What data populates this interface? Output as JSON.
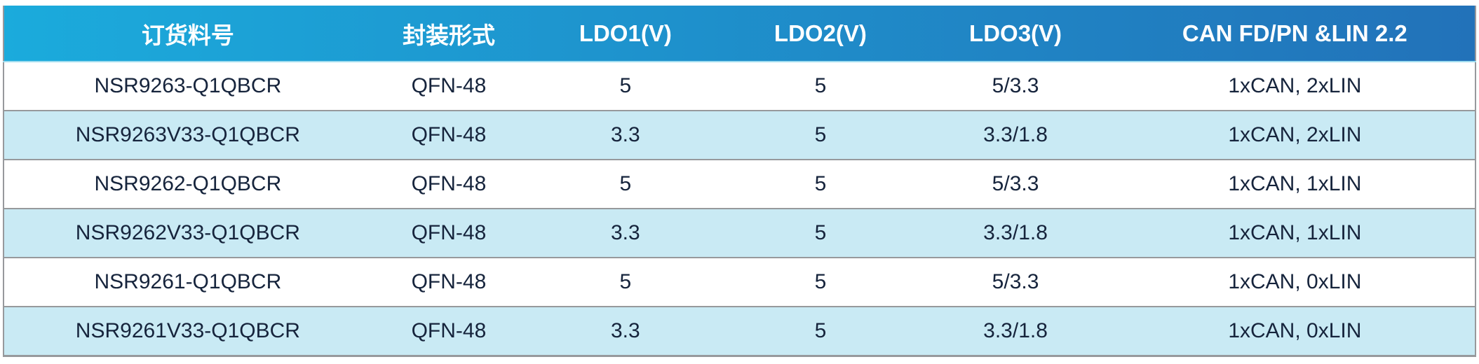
{
  "colors": {
    "header_gradient_start": "#1BABDC",
    "header_gradient_end": "#2272B9",
    "row_alt": "#C9EAF4",
    "row_default": "#FFFFFF",
    "text": "#16243C",
    "header_text": "#FFFFFF",
    "grid_line": "#97999C",
    "header_underline": "#9FDCEF"
  },
  "table": {
    "columns": [
      "订货料号",
      "封装形式",
      "LDO1(V)",
      "LDO2(V)",
      "LDO3(V)",
      "CAN FD/PN &LIN 2.2"
    ],
    "rows": [
      [
        "NSR9263-Q1QBCR",
        "QFN-48",
        "5",
        "5",
        "5/3.3",
        "1xCAN, 2xLIN"
      ],
      [
        "NSR9263V33-Q1QBCR",
        "QFN-48",
        "3.3",
        "5",
        "3.3/1.8",
        "1xCAN, 2xLIN"
      ],
      [
        "NSR9262-Q1QBCR",
        "QFN-48",
        "5",
        "5",
        "5/3.3",
        "1xCAN, 1xLIN"
      ],
      [
        "NSR9262V33-Q1QBCR",
        "QFN-48",
        "3.3",
        "5",
        "3.3/1.8",
        "1xCAN, 1xLIN"
      ],
      [
        "NSR9261-Q1QBCR",
        "QFN-48",
        "5",
        "5",
        "5/3.3",
        "1xCAN, 0xLIN"
      ],
      [
        "NSR9261V33-Q1QBCR",
        "QFN-48",
        "3.3",
        "5",
        "3.3/1.8",
        "1xCAN, 0xLIN"
      ]
    ]
  }
}
